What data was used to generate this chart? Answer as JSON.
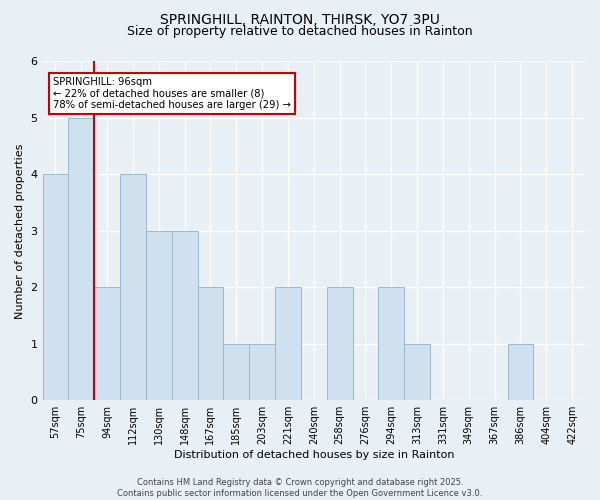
{
  "title_line1": "SPRINGHILL, RAINTON, THIRSK, YO7 3PU",
  "title_line2": "Size of property relative to detached houses in Rainton",
  "xlabel": "Distribution of detached houses by size in Rainton",
  "ylabel": "Number of detached properties",
  "bins": [
    "57sqm",
    "75sqm",
    "94sqm",
    "112sqm",
    "130sqm",
    "148sqm",
    "167sqm",
    "185sqm",
    "203sqm",
    "221sqm",
    "240sqm",
    "258sqm",
    "276sqm",
    "294sqm",
    "313sqm",
    "331sqm",
    "349sqm",
    "367sqm",
    "386sqm",
    "404sqm",
    "422sqm"
  ],
  "values": [
    4,
    5,
    2,
    4,
    3,
    3,
    2,
    1,
    1,
    2,
    0,
    2,
    0,
    2,
    1,
    0,
    0,
    0,
    1,
    0,
    0
  ],
  "bar_color": "#cfe0ee",
  "bar_edge_color": "#9ab8cc",
  "vline_color": "#cc0000",
  "vline_x": 2,
  "annotation_text": "SPRINGHILL: 96sqm\n← 22% of detached houses are smaller (8)\n78% of semi-detached houses are larger (29) →",
  "annotation_box_color": "white",
  "annotation_box_edge": "#cc0000",
  "ylim": [
    0,
    6
  ],
  "yticks": [
    0,
    1,
    2,
    3,
    4,
    5,
    6
  ],
  "background_color": "#e8eff5",
  "grid_color": "#c8d8e5",
  "footer_text": "Contains HM Land Registry data © Crown copyright and database right 2025.\nContains public sector information licensed under the Open Government Licence v3.0."
}
